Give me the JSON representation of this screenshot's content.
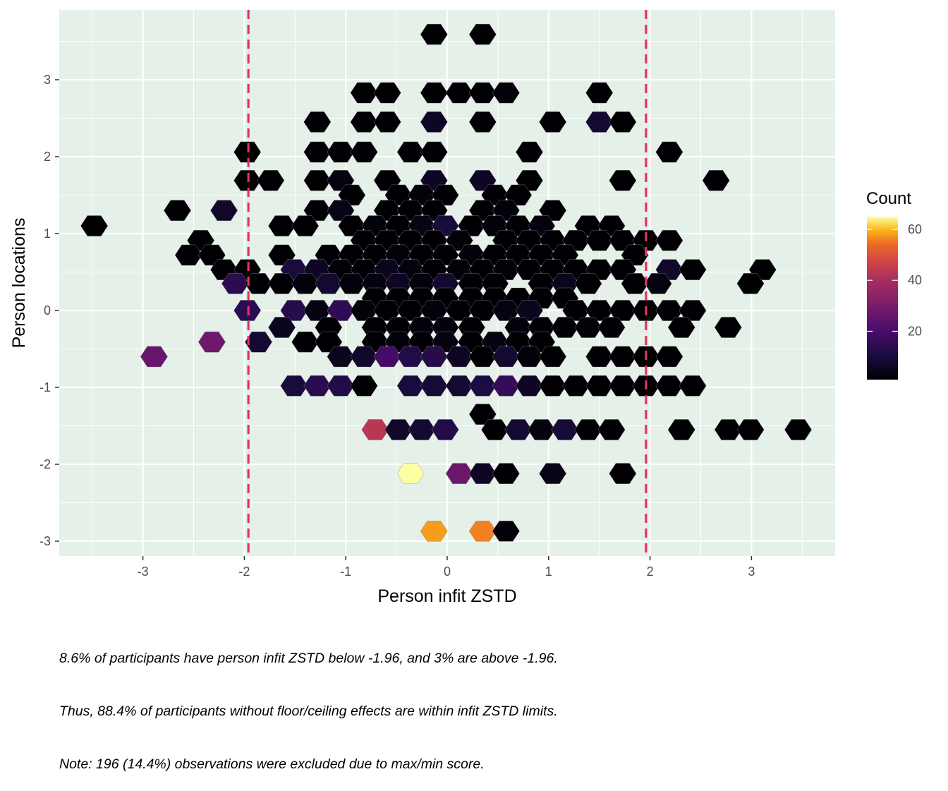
{
  "chart_data": {
    "type": "hexbin",
    "xlabel": "Person infit ZSTD",
    "ylabel": "Person locations",
    "xlim": [
      -3.85,
      3.85
    ],
    "ylim": [
      -3.2,
      3.85
    ],
    "x_ticks": [
      -3,
      -2,
      -1,
      0,
      1,
      2,
      3
    ],
    "y_ticks": [
      -3,
      -2,
      -1,
      0,
      1,
      2,
      3
    ],
    "x_tick_labels": [
      "-3",
      "-2",
      "-1",
      "0",
      "1",
      "2",
      "3"
    ],
    "y_tick_labels": [
      "-3",
      "-2",
      "-1",
      "0",
      "1",
      "2",
      "3"
    ],
    "reference_lines_x": [
      -1.96,
      1.96
    ],
    "reference_line_color": "#e8305a",
    "panel_background": "#e5f0e9",
    "grid": true,
    "legend": {
      "title": "Count",
      "position": "right",
      "range": [
        1,
        65
      ],
      "ticks": [
        20,
        40,
        60
      ],
      "tick_labels": [
        "20",
        "40",
        "60"
      ],
      "colormap": "inferno"
    },
    "hexbins": [
      {
        "x": -0.13,
        "y": 3.59,
        "count": 1
      },
      {
        "x": 0.35,
        "y": 3.59,
        "count": 1
      },
      {
        "x": -0.82,
        "y": 2.83,
        "count": 1
      },
      {
        "x": -0.59,
        "y": 2.83,
        "count": 1
      },
      {
        "x": -0.13,
        "y": 2.83,
        "count": 1
      },
      {
        "x": 0.12,
        "y": 2.83,
        "count": 1
      },
      {
        "x": 0.35,
        "y": 2.83,
        "count": 1
      },
      {
        "x": 0.58,
        "y": 2.83,
        "count": 2
      },
      {
        "x": 1.5,
        "y": 2.83,
        "count": 1
      },
      {
        "x": -1.28,
        "y": 2.45,
        "count": 1
      },
      {
        "x": -0.82,
        "y": 2.45,
        "count": 1
      },
      {
        "x": -0.59,
        "y": 2.45,
        "count": 1
      },
      {
        "x": -0.13,
        "y": 2.45,
        "count": 6
      },
      {
        "x": 0.35,
        "y": 2.45,
        "count": 1
      },
      {
        "x": 1.04,
        "y": 2.45,
        "count": 1
      },
      {
        "x": 1.5,
        "y": 2.45,
        "count": 8
      },
      {
        "x": 1.73,
        "y": 2.45,
        "count": 1
      },
      {
        "x": -1.97,
        "y": 2.06,
        "count": 1
      },
      {
        "x": -1.28,
        "y": 2.06,
        "count": 1
      },
      {
        "x": -1.05,
        "y": 2.06,
        "count": 1
      },
      {
        "x": -0.82,
        "y": 2.06,
        "count": 1
      },
      {
        "x": -0.36,
        "y": 2.06,
        "count": 1
      },
      {
        "x": -0.13,
        "y": 2.06,
        "count": 1
      },
      {
        "x": 0.81,
        "y": 2.06,
        "count": 1
      },
      {
        "x": 2.19,
        "y": 2.06,
        "count": 1
      },
      {
        "x": -1.97,
        "y": 1.69,
        "count": 1
      },
      {
        "x": -1.74,
        "y": 1.69,
        "count": 1
      },
      {
        "x": -1.28,
        "y": 1.69,
        "count": 1
      },
      {
        "x": -1.05,
        "y": 1.69,
        "count": 3
      },
      {
        "x": -0.59,
        "y": 1.69,
        "count": 1
      },
      {
        "x": -0.13,
        "y": 1.69,
        "count": 6
      },
      {
        "x": 0.35,
        "y": 1.69,
        "count": 6
      },
      {
        "x": 0.81,
        "y": 1.69,
        "count": 1
      },
      {
        "x": 1.73,
        "y": 1.69,
        "count": 1
      },
      {
        "x": 2.65,
        "y": 1.69,
        "count": 1
      },
      {
        "x": -0.94,
        "y": 1.5,
        "count": 1
      },
      {
        "x": -0.48,
        "y": 1.5,
        "count": 1
      },
      {
        "x": -0.25,
        "y": 1.5,
        "count": 2
      },
      {
        "x": -0.02,
        "y": 1.5,
        "count": 1
      },
      {
        "x": 0.47,
        "y": 1.5,
        "count": 1
      },
      {
        "x": 0.7,
        "y": 1.5,
        "count": 1
      },
      {
        "x": -2.66,
        "y": 1.3,
        "count": 1
      },
      {
        "x": -2.2,
        "y": 1.3,
        "count": 7
      },
      {
        "x": -1.28,
        "y": 1.3,
        "count": 1
      },
      {
        "x": -1.05,
        "y": 1.3,
        "count": 4
      },
      {
        "x": -0.59,
        "y": 1.3,
        "count": 1
      },
      {
        "x": -0.36,
        "y": 1.3,
        "count": 1
      },
      {
        "x": -0.13,
        "y": 1.3,
        "count": 1
      },
      {
        "x": 0.35,
        "y": 1.3,
        "count": 1
      },
      {
        "x": 0.58,
        "y": 1.3,
        "count": 2
      },
      {
        "x": 1.04,
        "y": 1.3,
        "count": 1
      },
      {
        "x": -3.48,
        "y": 1.1,
        "count": 1
      },
      {
        "x": -1.63,
        "y": 1.1,
        "count": 1
      },
      {
        "x": -1.4,
        "y": 1.1,
        "count": 1
      },
      {
        "x": -0.94,
        "y": 1.1,
        "count": 1
      },
      {
        "x": -0.71,
        "y": 1.1,
        "count": 2
      },
      {
        "x": -0.48,
        "y": 1.1,
        "count": 1
      },
      {
        "x": -0.25,
        "y": 1.1,
        "count": 4
      },
      {
        "x": -0.02,
        "y": 1.1,
        "count": 10
      },
      {
        "x": 0.24,
        "y": 1.1,
        "count": 1
      },
      {
        "x": 0.47,
        "y": 1.1,
        "count": 2
      },
      {
        "x": 0.7,
        "y": 1.1,
        "count": 1
      },
      {
        "x": 0.93,
        "y": 1.1,
        "count": 3
      },
      {
        "x": 1.39,
        "y": 1.1,
        "count": 1
      },
      {
        "x": 1.62,
        "y": 1.1,
        "count": 1
      },
      {
        "x": -2.43,
        "y": 0.91,
        "count": 1
      },
      {
        "x": -0.82,
        "y": 0.91,
        "count": 1
      },
      {
        "x": -0.59,
        "y": 0.91,
        "count": 1
      },
      {
        "x": -0.36,
        "y": 0.91,
        "count": 1
      },
      {
        "x": -0.13,
        "y": 0.91,
        "count": 1
      },
      {
        "x": 0.12,
        "y": 0.91,
        "count": 2
      },
      {
        "x": 0.58,
        "y": 0.91,
        "count": 1
      },
      {
        "x": 0.81,
        "y": 0.91,
        "count": 1
      },
      {
        "x": 1.04,
        "y": 0.91,
        "count": 1
      },
      {
        "x": 1.27,
        "y": 0.91,
        "count": 1
      },
      {
        "x": 1.5,
        "y": 0.91,
        "count": 1
      },
      {
        "x": 1.73,
        "y": 0.91,
        "count": 1
      },
      {
        "x": 1.96,
        "y": 0.91,
        "count": 1
      },
      {
        "x": 2.19,
        "y": 0.91,
        "count": 1
      },
      {
        "x": -2.55,
        "y": 0.72,
        "count": 1
      },
      {
        "x": -2.32,
        "y": 0.72,
        "count": 1
      },
      {
        "x": -1.63,
        "y": 0.72,
        "count": 1
      },
      {
        "x": -1.17,
        "y": 0.72,
        "count": 1
      },
      {
        "x": -0.94,
        "y": 0.72,
        "count": 1
      },
      {
        "x": -0.71,
        "y": 0.72,
        "count": 1
      },
      {
        "x": -0.48,
        "y": 0.72,
        "count": 2
      },
      {
        "x": -0.25,
        "y": 0.72,
        "count": 1
      },
      {
        "x": -0.02,
        "y": 0.72,
        "count": 1
      },
      {
        "x": 0.24,
        "y": 0.72,
        "count": 2
      },
      {
        "x": 0.47,
        "y": 0.72,
        "count": 1
      },
      {
        "x": 0.7,
        "y": 0.72,
        "count": 1
      },
      {
        "x": 0.93,
        "y": 0.72,
        "count": 1
      },
      {
        "x": 1.16,
        "y": 0.72,
        "count": 1
      },
      {
        "x": 1.85,
        "y": 0.72,
        "count": 1
      },
      {
        "x": -2.2,
        "y": 0.53,
        "count": 1
      },
      {
        "x": -1.97,
        "y": 0.53,
        "count": 1
      },
      {
        "x": -1.51,
        "y": 0.53,
        "count": 10
      },
      {
        "x": -1.28,
        "y": 0.53,
        "count": 6
      },
      {
        "x": -1.05,
        "y": 0.53,
        "count": 2
      },
      {
        "x": -0.82,
        "y": 0.53,
        "count": 1
      },
      {
        "x": -0.59,
        "y": 0.53,
        "count": 5
      },
      {
        "x": -0.36,
        "y": 0.53,
        "count": 3
      },
      {
        "x": -0.13,
        "y": 0.53,
        "count": 1
      },
      {
        "x": 0.12,
        "y": 0.53,
        "count": 2
      },
      {
        "x": 0.35,
        "y": 0.53,
        "count": 1
      },
      {
        "x": 0.58,
        "y": 0.53,
        "count": 2
      },
      {
        "x": 0.81,
        "y": 0.53,
        "count": 1
      },
      {
        "x": 1.04,
        "y": 0.53,
        "count": 1
      },
      {
        "x": 1.27,
        "y": 0.53,
        "count": 1
      },
      {
        "x": 1.5,
        "y": 0.53,
        "count": 1
      },
      {
        "x": 1.73,
        "y": 0.53,
        "count": 1
      },
      {
        "x": 2.19,
        "y": 0.53,
        "count": 7
      },
      {
        "x": 2.42,
        "y": 0.53,
        "count": 1
      },
      {
        "x": 3.11,
        "y": 0.53,
        "count": 1
      },
      {
        "x": -2.09,
        "y": 0.35,
        "count": 14
      },
      {
        "x": -1.86,
        "y": 0.35,
        "count": 1
      },
      {
        "x": -1.63,
        "y": 0.35,
        "count": 1
      },
      {
        "x": -1.4,
        "y": 0.35,
        "count": 2
      },
      {
        "x": -1.17,
        "y": 0.35,
        "count": 8
      },
      {
        "x": -0.94,
        "y": 0.35,
        "count": 2
      },
      {
        "x": -0.71,
        "y": 0.35,
        "count": 3
      },
      {
        "x": -0.48,
        "y": 0.35,
        "count": 6
      },
      {
        "x": -0.25,
        "y": 0.35,
        "count": 2
      },
      {
        "x": -0.02,
        "y": 0.35,
        "count": 8
      },
      {
        "x": 0.24,
        "y": 0.35,
        "count": 1
      },
      {
        "x": 0.47,
        "y": 0.35,
        "count": 1
      },
      {
        "x": 0.93,
        "y": 0.35,
        "count": 1
      },
      {
        "x": 1.16,
        "y": 0.35,
        "count": 5
      },
      {
        "x": 1.39,
        "y": 0.35,
        "count": 1
      },
      {
        "x": 1.85,
        "y": 0.35,
        "count": 1
      },
      {
        "x": 2.08,
        "y": 0.35,
        "count": 3
      },
      {
        "x": 2.99,
        "y": 0.35,
        "count": 1
      },
      {
        "x": -0.71,
        "y": 0.16,
        "count": 1
      },
      {
        "x": -0.48,
        "y": 0.16,
        "count": 1
      },
      {
        "x": -0.25,
        "y": 0.16,
        "count": 1
      },
      {
        "x": -0.02,
        "y": 0.16,
        "count": 1
      },
      {
        "x": 0.24,
        "y": 0.16,
        "count": 1
      },
      {
        "x": 0.47,
        "y": 0.16,
        "count": 1
      },
      {
        "x": 0.7,
        "y": 0.16,
        "count": 1
      },
      {
        "x": 0.93,
        "y": 0.16,
        "count": 1
      },
      {
        "x": 1.16,
        "y": 0.16,
        "count": 1
      },
      {
        "x": -1.97,
        "y": 0.0,
        "count": 14
      },
      {
        "x": -1.51,
        "y": 0.0,
        "count": 13
      },
      {
        "x": -1.28,
        "y": 0.0,
        "count": 3
      },
      {
        "x": -1.05,
        "y": 0.0,
        "count": 15
      },
      {
        "x": -0.82,
        "y": 0.0,
        "count": 2
      },
      {
        "x": -0.59,
        "y": 0.0,
        "count": 1
      },
      {
        "x": -0.36,
        "y": 0.0,
        "count": 1
      },
      {
        "x": -0.13,
        "y": 0.0,
        "count": 2
      },
      {
        "x": 0.12,
        "y": 0.0,
        "count": 1
      },
      {
        "x": 0.35,
        "y": 0.0,
        "count": 1
      },
      {
        "x": 0.58,
        "y": 0.0,
        "count": 3
      },
      {
        "x": 0.81,
        "y": 0.0,
        "count": 5
      },
      {
        "x": 1.27,
        "y": 0.0,
        "count": 1
      },
      {
        "x": 1.5,
        "y": 0.0,
        "count": 1
      },
      {
        "x": 1.73,
        "y": 0.0,
        "count": 1
      },
      {
        "x": 1.96,
        "y": 0.0,
        "count": 1
      },
      {
        "x": 2.19,
        "y": 0.0,
        "count": 1
      },
      {
        "x": 2.42,
        "y": 0.0,
        "count": 1
      },
      {
        "x": -1.63,
        "y": -0.22,
        "count": 5
      },
      {
        "x": -1.17,
        "y": -0.22,
        "count": 1
      },
      {
        "x": -0.71,
        "y": -0.22,
        "count": 1
      },
      {
        "x": -0.48,
        "y": -0.22,
        "count": 1
      },
      {
        "x": -0.25,
        "y": -0.22,
        "count": 2
      },
      {
        "x": -0.02,
        "y": -0.22,
        "count": 2
      },
      {
        "x": 0.24,
        "y": -0.22,
        "count": 1
      },
      {
        "x": 0.7,
        "y": -0.22,
        "count": 2
      },
      {
        "x": 0.93,
        "y": -0.22,
        "count": 1
      },
      {
        "x": 1.16,
        "y": -0.22,
        "count": 1
      },
      {
        "x": 1.39,
        "y": -0.22,
        "count": 2
      },
      {
        "x": 1.62,
        "y": -0.22,
        "count": 1
      },
      {
        "x": 2.31,
        "y": -0.22,
        "count": 1
      },
      {
        "x": 2.77,
        "y": -0.22,
        "count": 1
      },
      {
        "x": -2.32,
        "y": -0.41,
        "count": 28
      },
      {
        "x": -1.86,
        "y": -0.41,
        "count": 8
      },
      {
        "x": -1.4,
        "y": -0.41,
        "count": 1
      },
      {
        "x": -1.17,
        "y": -0.41,
        "count": 1
      },
      {
        "x": -0.71,
        "y": -0.41,
        "count": 1
      },
      {
        "x": -0.48,
        "y": -0.41,
        "count": 2
      },
      {
        "x": -0.25,
        "y": -0.41,
        "count": 1
      },
      {
        "x": -0.02,
        "y": -0.41,
        "count": 3
      },
      {
        "x": 0.24,
        "y": -0.41,
        "count": 1
      },
      {
        "x": 0.47,
        "y": -0.41,
        "count": 3
      },
      {
        "x": 0.7,
        "y": -0.41,
        "count": 1
      },
      {
        "x": 0.93,
        "y": -0.41,
        "count": 1
      },
      {
        "x": -2.89,
        "y": -0.6,
        "count": 26
      },
      {
        "x": -1.05,
        "y": -0.6,
        "count": 5
      },
      {
        "x": -0.82,
        "y": -0.6,
        "count": 7
      },
      {
        "x": -0.59,
        "y": -0.6,
        "count": 19
      },
      {
        "x": -0.36,
        "y": -0.6,
        "count": 12
      },
      {
        "x": -0.13,
        "y": -0.6,
        "count": 13
      },
      {
        "x": 0.12,
        "y": -0.6,
        "count": 6
      },
      {
        "x": 0.35,
        "y": -0.6,
        "count": 1
      },
      {
        "x": 0.58,
        "y": -0.6,
        "count": 8
      },
      {
        "x": 0.81,
        "y": -0.6,
        "count": 2
      },
      {
        "x": 1.04,
        "y": -0.6,
        "count": 1
      },
      {
        "x": 1.5,
        "y": -0.6,
        "count": 1
      },
      {
        "x": 1.73,
        "y": -0.6,
        "count": 1
      },
      {
        "x": 1.96,
        "y": -0.6,
        "count": 1
      },
      {
        "x": 2.19,
        "y": -0.6,
        "count": 1
      },
      {
        "x": -1.51,
        "y": -0.98,
        "count": 10
      },
      {
        "x": -1.28,
        "y": -0.98,
        "count": 14
      },
      {
        "x": -1.05,
        "y": -0.98,
        "count": 12
      },
      {
        "x": -0.82,
        "y": -0.98,
        "count": 1
      },
      {
        "x": -0.36,
        "y": -0.98,
        "count": 10
      },
      {
        "x": -0.13,
        "y": -0.98,
        "count": 9
      },
      {
        "x": 0.12,
        "y": -0.98,
        "count": 8
      },
      {
        "x": 0.35,
        "y": -0.98,
        "count": 11
      },
      {
        "x": 0.58,
        "y": -0.98,
        "count": 16
      },
      {
        "x": 0.81,
        "y": -0.98,
        "count": 6
      },
      {
        "x": 1.04,
        "y": -0.98,
        "count": 1
      },
      {
        "x": 1.27,
        "y": -0.98,
        "count": 1
      },
      {
        "x": 1.5,
        "y": -0.98,
        "count": 1
      },
      {
        "x": 1.73,
        "y": -0.98,
        "count": 1
      },
      {
        "x": 1.96,
        "y": -0.98,
        "count": 1
      },
      {
        "x": 2.19,
        "y": -0.98,
        "count": 1
      },
      {
        "x": 2.42,
        "y": -0.98,
        "count": 1
      },
      {
        "x": 0.35,
        "y": -1.35,
        "count": 1
      },
      {
        "x": -0.71,
        "y": -1.55,
        "count": 43
      },
      {
        "x": -0.48,
        "y": -1.55,
        "count": 7
      },
      {
        "x": -0.25,
        "y": -1.55,
        "count": 8
      },
      {
        "x": -0.02,
        "y": -1.55,
        "count": 12
      },
      {
        "x": 0.47,
        "y": -1.55,
        "count": 1
      },
      {
        "x": 0.7,
        "y": -1.55,
        "count": 8
      },
      {
        "x": 0.93,
        "y": -1.55,
        "count": 3
      },
      {
        "x": 1.16,
        "y": -1.55,
        "count": 9
      },
      {
        "x": 1.39,
        "y": -1.55,
        "count": 1
      },
      {
        "x": 1.62,
        "y": -1.55,
        "count": 1
      },
      {
        "x": 2.31,
        "y": -1.55,
        "count": 1
      },
      {
        "x": 2.77,
        "y": -1.55,
        "count": 1
      },
      {
        "x": 2.99,
        "y": -1.55,
        "count": 1
      },
      {
        "x": 3.46,
        "y": -1.55,
        "count": 1
      },
      {
        "x": -0.36,
        "y": -2.12,
        "count": 65
      },
      {
        "x": 0.12,
        "y": -2.12,
        "count": 27
      },
      {
        "x": 0.35,
        "y": -2.12,
        "count": 6
      },
      {
        "x": 0.58,
        "y": -2.12,
        "count": 1
      },
      {
        "x": 1.04,
        "y": -2.12,
        "count": 4
      },
      {
        "x": 1.73,
        "y": -2.12,
        "count": 1
      },
      {
        "x": -0.13,
        "y": -2.87,
        "count": 58
      },
      {
        "x": 0.35,
        "y": -2.87,
        "count": 56
      },
      {
        "x": 0.58,
        "y": -2.87,
        "count": 2
      }
    ]
  },
  "caption": [
    "8.6% of participants have person infit ZSTD below -1.96, and 3% are above -1.96.",
    "Thus, 88.4% of participants without floor/ceiling effects are within infit ZSTD limits.",
    "Note: 196 (14.4%) observations were excluded due to max/min score."
  ]
}
